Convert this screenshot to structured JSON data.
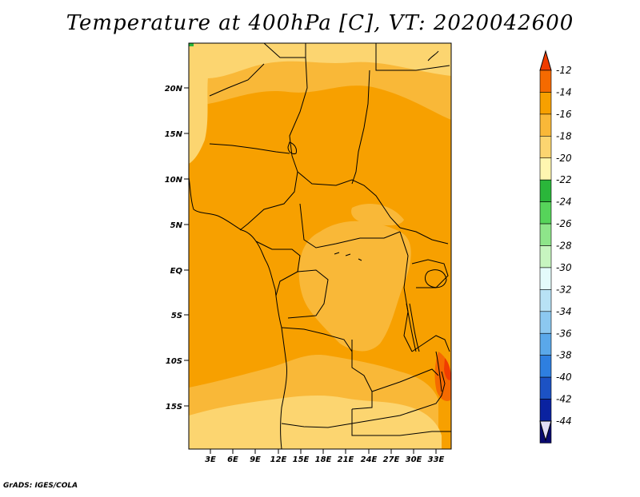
{
  "title": "Temperature at 400hPa [C], VT: 2020042600",
  "credit": "GrADS: IGES/COLA",
  "map": {
    "lat_labels": [
      "20N",
      "15N",
      "10N",
      "5N",
      "EQ",
      "5S",
      "10S",
      "15S"
    ],
    "lon_labels": [
      "3E",
      "6E",
      "9E",
      "12E",
      "15E",
      "18E",
      "21E",
      "24E",
      "27E",
      "30E",
      "33E"
    ]
  },
  "colorbar": {
    "labels": [
      "-12",
      "-14",
      "-16",
      "-18",
      "-20",
      "-22",
      "-24",
      "-26",
      "-28",
      "-30",
      "-32",
      "-34",
      "-36",
      "-38",
      "-40",
      "-42",
      "-44"
    ],
    "colors": [
      "#f03c00",
      "#f56a00",
      "#f7a000",
      "#f9b838",
      "#fcd570",
      "#fff6b0",
      "#2ab63a",
      "#56d45a",
      "#8ee58a",
      "#c7f5c0",
      "#e4fbfb",
      "#b8e2f5",
      "#8cc8f0",
      "#5aa8ea",
      "#2e7fe0",
      "#1c52c4",
      "#0a22a0",
      "#0a0a70",
      "#e2ddf4"
    ]
  },
  "colors": {
    "level_minus14_to_minus12": "#f56a00",
    "level_minus16_to_minus14": "#f7a000",
    "level_minus18_to_minus16": "#f9b838",
    "level_minus20_to_minus18": "#fcd570",
    "level_minus22_to_minus20": "#fff6b0",
    "level_above_minus12": "#f03c00"
  }
}
